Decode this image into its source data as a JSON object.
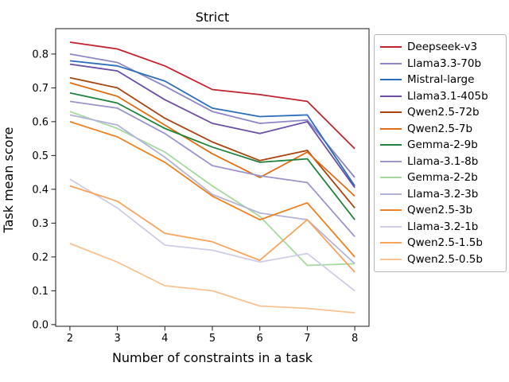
{
  "title": "Strict",
  "chart_data": {
    "type": "line",
    "title": "Strict",
    "xlabel": "Number of constraints in a task",
    "ylabel": "Task mean score",
    "x": [
      2,
      3,
      4,
      5,
      6,
      7,
      8
    ],
    "xlim": [
      1.7,
      8.3
    ],
    "ylim": [
      -0.005,
      0.875
    ],
    "x_ticks": [
      2,
      3,
      4,
      5,
      6,
      7,
      8
    ],
    "x_tick_labels": [
      "2",
      "3",
      "4",
      "5",
      "6",
      "7",
      "8"
    ],
    "y_ticks": [
      0.0,
      0.1,
      0.2,
      0.3,
      0.4,
      0.5,
      0.6,
      0.7,
      0.8
    ],
    "y_tick_labels": [
      "0.0",
      "0.1",
      "0.2",
      "0.3",
      "0.4",
      "0.5",
      "0.6",
      "0.7",
      "0.8"
    ],
    "grid": false,
    "legend_position": "outside-upper-right",
    "series": [
      {
        "name": "Deepseek-v3",
        "color": "#c2232e",
        "values": [
          0.835,
          0.815,
          0.765,
          0.695,
          0.68,
          0.66,
          0.52
        ]
      },
      {
        "name": "Llama3.3-70b",
        "color": "#8c86c6",
        "values": [
          0.8,
          0.775,
          0.705,
          0.63,
          0.595,
          0.605,
          0.435
        ]
      },
      {
        "name": "Mistral-large",
        "color": "#2d6ebb",
        "values": [
          0.78,
          0.765,
          0.72,
          0.64,
          0.615,
          0.62,
          0.41
        ]
      },
      {
        "name": "Llama3.1-405b",
        "color": "#6a4fa3",
        "values": [
          0.77,
          0.75,
          0.665,
          0.595,
          0.565,
          0.6,
          0.405
        ]
      },
      {
        "name": "Qwen2.5-72b",
        "color": "#a94510",
        "values": [
          0.73,
          0.7,
          0.61,
          0.54,
          0.485,
          0.515,
          0.345
        ]
      },
      {
        "name": "Qwen2.5-7b",
        "color": "#e06d13",
        "values": [
          0.715,
          0.675,
          0.59,
          0.505,
          0.435,
          0.51,
          0.38
        ]
      },
      {
        "name": "Gemma-2-9b",
        "color": "#22833f",
        "values": [
          0.685,
          0.655,
          0.58,
          0.525,
          0.48,
          0.49,
          0.31
        ]
      },
      {
        "name": "Llama-3.1-8b",
        "color": "#9b95cc",
        "values": [
          0.66,
          0.64,
          0.565,
          0.47,
          0.44,
          0.42,
          0.26
        ]
      },
      {
        "name": "Gemma-2-2b",
        "color": "#a5d99e",
        "values": [
          0.63,
          0.58,
          0.51,
          0.41,
          0.32,
          0.175,
          0.18
        ]
      },
      {
        "name": "Llama-3.2-3b",
        "color": "#b3b3d9",
        "values": [
          0.62,
          0.59,
          0.495,
          0.385,
          0.33,
          0.31,
          0.18
        ]
      },
      {
        "name": "Qwen2.5-3b",
        "color": "#ec8222",
        "values": [
          0.6,
          0.555,
          0.48,
          0.38,
          0.31,
          0.36,
          0.2
        ]
      },
      {
        "name": "Llama-3.2-1b",
        "color": "#cdcde8",
        "values": [
          0.43,
          0.345,
          0.235,
          0.22,
          0.185,
          0.21,
          0.1
        ]
      },
      {
        "name": "Qwen2.5-1.5b",
        "color": "#f5a55e",
        "values": [
          0.41,
          0.365,
          0.27,
          0.245,
          0.19,
          0.31,
          0.155
        ]
      },
      {
        "name": "Qwen2.5-0.5b",
        "color": "#f9c291",
        "values": [
          0.24,
          0.185,
          0.115,
          0.1,
          0.055,
          0.048,
          0.035
        ]
      }
    ]
  }
}
